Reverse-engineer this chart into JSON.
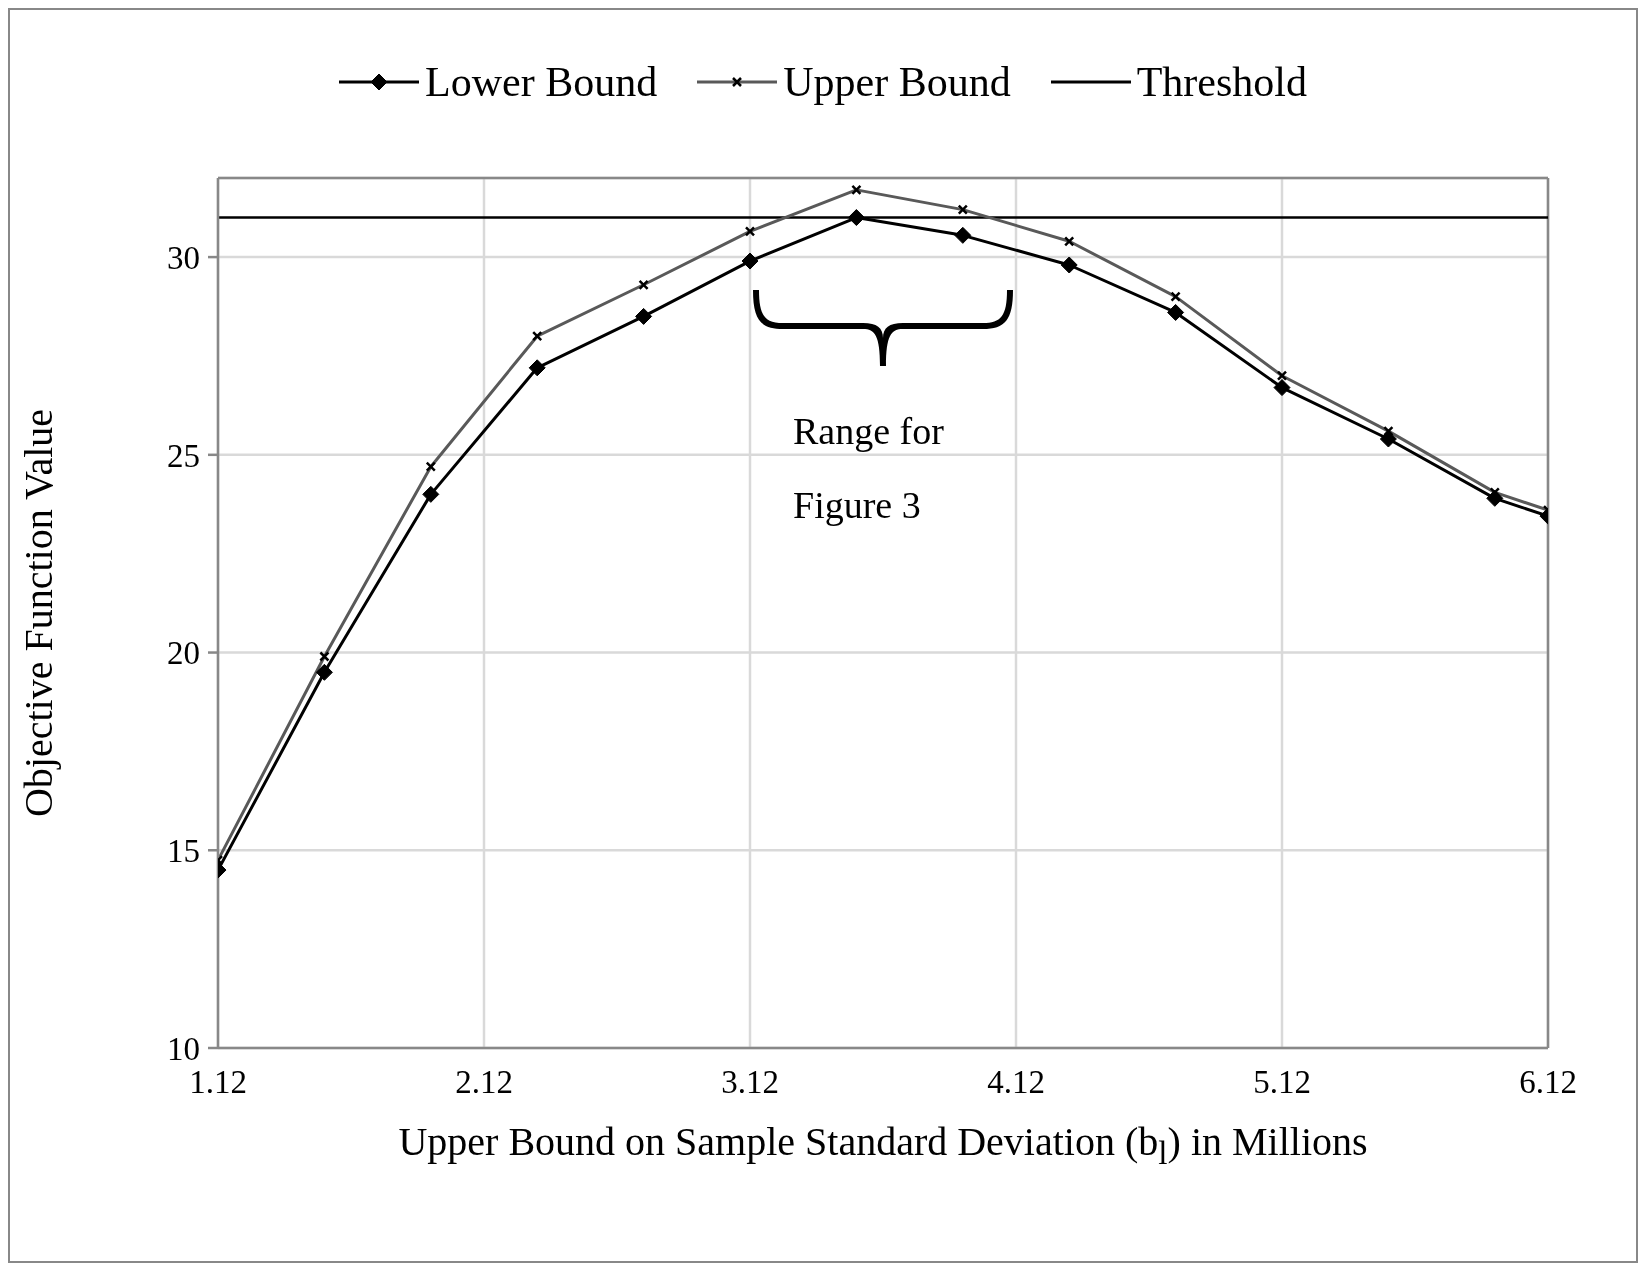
{
  "chart_data": {
    "type": "line",
    "xlabel": "Upper Bound on Sample Standard Deviation (b$_{l}$) in Millions",
    "ylabel": "Objective Function Value",
    "x": [
      1.12,
      1.52,
      1.92,
      2.32,
      2.72,
      3.12,
      3.52,
      3.92,
      4.32,
      4.72,
      5.12,
      5.52,
      5.92,
      6.12
    ],
    "series": [
      {
        "name": "Lower Bound",
        "color": "#000000",
        "marker": "diamond",
        "values": [
          14.5,
          19.5,
          24.0,
          27.2,
          28.5,
          29.9,
          31.0,
          30.55,
          29.8,
          28.6,
          26.7,
          25.4,
          23.9,
          23.45
        ]
      },
      {
        "name": "Upper Bound",
        "color": "#595959",
        "marker": "cross",
        "values": [
          14.75,
          19.9,
          24.7,
          28.0,
          29.3,
          30.65,
          31.7,
          31.2,
          30.4,
          29.0,
          27.0,
          25.6,
          24.05,
          23.6
        ]
      }
    ],
    "ref_lines": [
      {
        "axis": "y",
        "value": 31.0,
        "label": "Threshold",
        "color": "#000000"
      }
    ],
    "annotations": [
      "Range for Figure 3"
    ],
    "xlim": [
      1.12,
      6.12
    ],
    "xticks": [
      1.12,
      2.12,
      3.12,
      4.12,
      5.12,
      6.12
    ],
    "ylim": [
      10,
      32
    ],
    "yticks": [
      10,
      15,
      20,
      25,
      30
    ],
    "grid": true,
    "legend": "top",
    "line_style": "solid"
  }
}
